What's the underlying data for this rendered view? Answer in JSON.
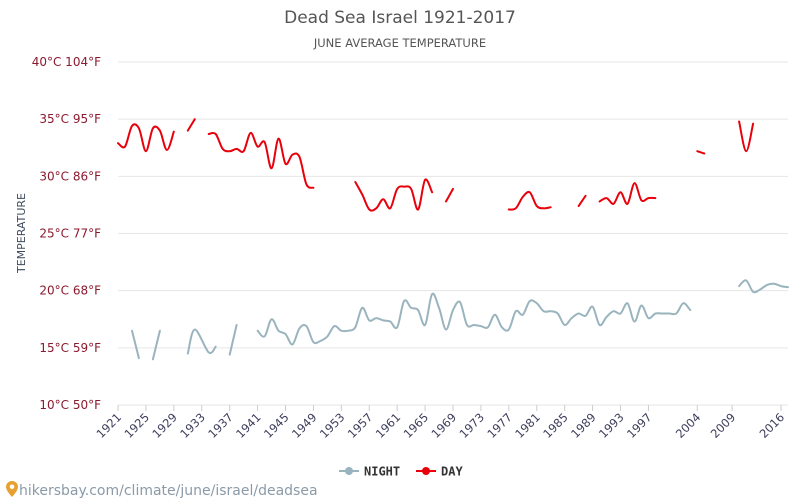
{
  "header": {
    "title": "Dead Sea Israel 1921-2017",
    "subtitle": "JUNE AVERAGE TEMPERATURE"
  },
  "legend": {
    "night_label": "NIGHT",
    "day_label": "DAY"
  },
  "source": {
    "text": "hikersbay.com/climate/june/israel/deadsea"
  },
  "colors": {
    "night": "#9ab4be",
    "day": "#e8000b",
    "grid": "#e6e6e6",
    "ytick": "#8b1a2e",
    "pin": "#e8a030"
  },
  "chart_data": {
    "type": "line",
    "title": "Dead Sea Israel 1921-2017",
    "subtitle": "JUNE AVERAGE TEMPERATURE",
    "xlabel": "",
    "ylabel": "TEMPERATURE",
    "ylim": [
      10,
      40
    ],
    "yticks": [
      10,
      15,
      20,
      25,
      30,
      35,
      40
    ],
    "ytick_labels": [
      "10°C 50°F",
      "15°C 59°F",
      "20°C 68°F",
      "25°C 77°F",
      "30°C 86°F",
      "35°C 95°F",
      "40°C 104°F"
    ],
    "xlim": [
      1921,
      2017
    ],
    "xticks": [
      1921,
      1925,
      1929,
      1933,
      1937,
      1941,
      1945,
      1949,
      1953,
      1957,
      1961,
      1965,
      1969,
      1973,
      1977,
      1981,
      1985,
      1989,
      1993,
      1997,
      2004,
      2009,
      2016
    ],
    "grid": true,
    "legend_position": "bottom",
    "series": [
      {
        "name": "NIGHT",
        "segments": [
          [
            [
              1923,
              16.5
            ],
            [
              1924,
              14.1
            ]
          ],
          [
            [
              1926,
              14.0
            ],
            [
              1927,
              16.5
            ]
          ],
          [
            [
              1931,
              14.5
            ],
            [
              1932,
              16.6
            ],
            [
              1934,
              14.6
            ],
            [
              1935,
              15.1
            ]
          ],
          [
            [
              1937,
              14.4
            ],
            [
              1938,
              17.0
            ]
          ],
          [
            [
              1941,
              16.5
            ],
            [
              1942,
              16.0
            ],
            [
              1943,
              17.5
            ],
            [
              1944,
              16.5
            ],
            [
              1945,
              16.2
            ],
            [
              1946,
              15.3
            ],
            [
              1947,
              16.7
            ],
            [
              1948,
              16.9
            ],
            [
              1949,
              15.5
            ],
            [
              1950,
              15.6
            ],
            [
              1951,
              16.0
            ],
            [
              1952,
              16.9
            ],
            [
              1953,
              16.5
            ],
            [
              1954,
              16.5
            ],
            [
              1955,
              16.8
            ],
            [
              1956,
              18.5
            ],
            [
              1957,
              17.4
            ],
            [
              1958,
              17.6
            ],
            [
              1959,
              17.4
            ],
            [
              1960,
              17.3
            ],
            [
              1961,
              16.8
            ],
            [
              1962,
              19.1
            ],
            [
              1963,
              18.5
            ],
            [
              1964,
              18.3
            ],
            [
              1965,
              17.0
            ],
            [
              1966,
              19.7
            ],
            [
              1967,
              18.5
            ],
            [
              1968,
              16.6
            ],
            [
              1969,
              18.3
            ],
            [
              1970,
              19.0
            ],
            [
              1971,
              17.0
            ],
            [
              1972,
              17.0
            ],
            [
              1973,
              16.9
            ],
            [
              1974,
              16.8
            ],
            [
              1975,
              17.9
            ],
            [
              1976,
              16.8
            ],
            [
              1977,
              16.6
            ],
            [
              1978,
              18.2
            ],
            [
              1979,
              17.9
            ],
            [
              1980,
              19.1
            ],
            [
              1981,
              18.9
            ],
            [
              1982,
              18.2
            ],
            [
              1983,
              18.2
            ],
            [
              1984,
              18.0
            ],
            [
              1985,
              17.0
            ],
            [
              1986,
              17.6
            ],
            [
              1987,
              18.0
            ],
            [
              1988,
              17.8
            ],
            [
              1989,
              18.6
            ],
            [
              1990,
              17.0
            ],
            [
              1991,
              17.7
            ],
            [
              1992,
              18.2
            ],
            [
              1993,
              18.0
            ],
            [
              1994,
              18.9
            ],
            [
              1995,
              17.3
            ],
            [
              1996,
              18.7
            ],
            [
              1997,
              17.6
            ],
            [
              1998,
              18.0
            ],
            [
              1999,
              18.0
            ],
            [
              2000,
              18.0
            ],
            [
              2001,
              18.0
            ],
            [
              2002,
              18.9
            ],
            [
              2003,
              18.3
            ]
          ],
          [
            [
              2010,
              20.4
            ],
            [
              2011,
              20.9
            ],
            [
              2012,
              19.9
            ],
            [
              2013,
              20.1
            ],
            [
              2014,
              20.5
            ],
            [
              2015,
              20.6
            ],
            [
              2016,
              20.4
            ],
            [
              2017,
              20.3
            ]
          ]
        ]
      },
      {
        "name": "DAY",
        "segments": [
          [
            [
              1921,
              32.9
            ],
            [
              1922,
              32.6
            ],
            [
              1923,
              34.4
            ],
            [
              1924,
              34.2
            ],
            [
              1925,
              32.2
            ],
            [
              1926,
              34.2
            ],
            [
              1927,
              34.0
            ],
            [
              1928,
              32.3
            ],
            [
              1929,
              33.9
            ]
          ],
          [
            [
              1931,
              34.0
            ],
            [
              1932,
              35.0
            ]
          ],
          [
            [
              1934,
              33.7
            ],
            [
              1935,
              33.7
            ],
            [
              1936,
              32.4
            ],
            [
              1937,
              32.2
            ],
            [
              1938,
              32.4
            ],
            [
              1939,
              32.2
            ],
            [
              1940,
              33.8
            ],
            [
              1941,
              32.6
            ],
            [
              1942,
              33.0
            ],
            [
              1943,
              30.7
            ],
            [
              1944,
              33.3
            ],
            [
              1945,
              31.1
            ],
            [
              1946,
              31.9
            ],
            [
              1947,
              31.7
            ],
            [
              1948,
              29.3
            ],
            [
              1949,
              29.0
            ]
          ],
          [
            [
              1955,
              29.5
            ],
            [
              1956,
              28.4
            ],
            [
              1957,
              27.1
            ],
            [
              1958,
              27.2
            ],
            [
              1959,
              28.0
            ],
            [
              1960,
              27.2
            ],
            [
              1961,
              28.9
            ],
            [
              1962,
              29.1
            ],
            [
              1963,
              28.9
            ],
            [
              1964,
              27.1
            ],
            [
              1965,
              29.7
            ],
            [
              1966,
              28.6
            ]
          ],
          [
            [
              1968,
              27.8
            ],
            [
              1969,
              28.9
            ]
          ],
          [
            [
              1977,
              27.1
            ],
            [
              1978,
              27.2
            ],
            [
              1979,
              28.2
            ],
            [
              1980,
              28.6
            ],
            [
              1981,
              27.4
            ],
            [
              1982,
              27.2
            ],
            [
              1983,
              27.3
            ]
          ],
          [
            [
              1987,
              27.4
            ],
            [
              1988,
              28.3
            ]
          ],
          [
            [
              1990,
              27.8
            ],
            [
              1991,
              28.1
            ],
            [
              1992,
              27.6
            ],
            [
              1993,
              28.6
            ],
            [
              1994,
              27.6
            ],
            [
              1995,
              29.4
            ],
            [
              1996,
              27.9
            ],
            [
              1997,
              28.1
            ],
            [
              1998,
              28.1
            ]
          ],
          [
            [
              2004,
              32.2
            ],
            [
              2005,
              32.0
            ]
          ],
          [
            [
              2010,
              34.8
            ],
            [
              2011,
              32.2
            ],
            [
              2012,
              34.6
            ]
          ]
        ]
      }
    ]
  }
}
